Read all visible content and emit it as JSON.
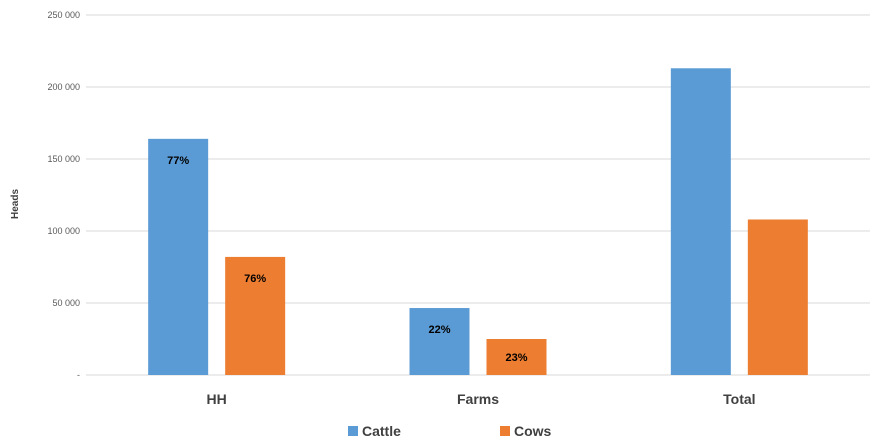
{
  "chart_data": {
    "type": "bar",
    "categories": [
      "HH",
      "Farms",
      "Total"
    ],
    "series": [
      {
        "name": "Cattle",
        "color": "#5B9BD5",
        "values": [
          164000,
          46500,
          213000
        ],
        "labels": [
          "77%",
          "22%",
          ""
        ]
      },
      {
        "name": "Cows",
        "color": "#ED7D31",
        "values": [
          82000,
          25000,
          108000
        ],
        "labels": [
          "76%",
          "23%",
          ""
        ]
      }
    ],
    "ylabel": "Heads",
    "ylim": [
      0,
      250000
    ],
    "yticks": [
      0,
      50000,
      100000,
      150000,
      200000,
      250000
    ],
    "ytick_labels": [
      "-",
      "50 000",
      "100 000",
      "150 000",
      "200 000",
      "250 000"
    ],
    "grid": true,
    "legend": "bottom",
    "gridline_color": "#D9D9D9"
  }
}
